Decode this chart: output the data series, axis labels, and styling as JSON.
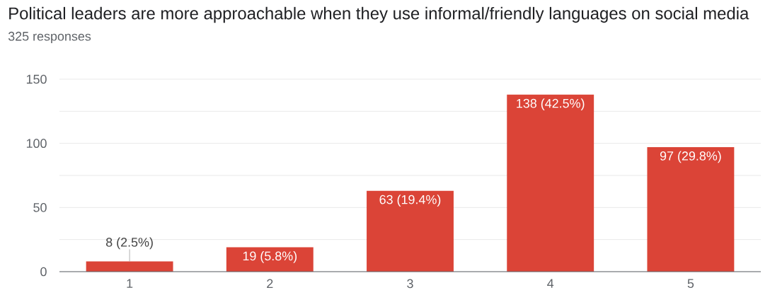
{
  "chart_data": {
    "type": "bar",
    "title": "Political leaders are more approachable when they use informal/friendly languages on social media",
    "subtitle": "325 responses",
    "categories": [
      "1",
      "2",
      "3",
      "4",
      "5"
    ],
    "values": [
      8,
      19,
      63,
      138,
      97
    ],
    "color": "#db4437",
    "value_labels": [
      "8 (2.5%)",
      "19 (5.8%)",
      "63 (19.4%)",
      "138 (42.5%)",
      "97 (29.8%)"
    ],
    "ylim": [
      0,
      150
    ],
    "yticks": [
      0,
      {
        "value": 25,
        "label": null
      },
      50,
      {
        "value": 75,
        "label": null
      },
      100,
      {
        "value": 125,
        "label": null
      },
      150
    ],
    "grid": "y"
  }
}
